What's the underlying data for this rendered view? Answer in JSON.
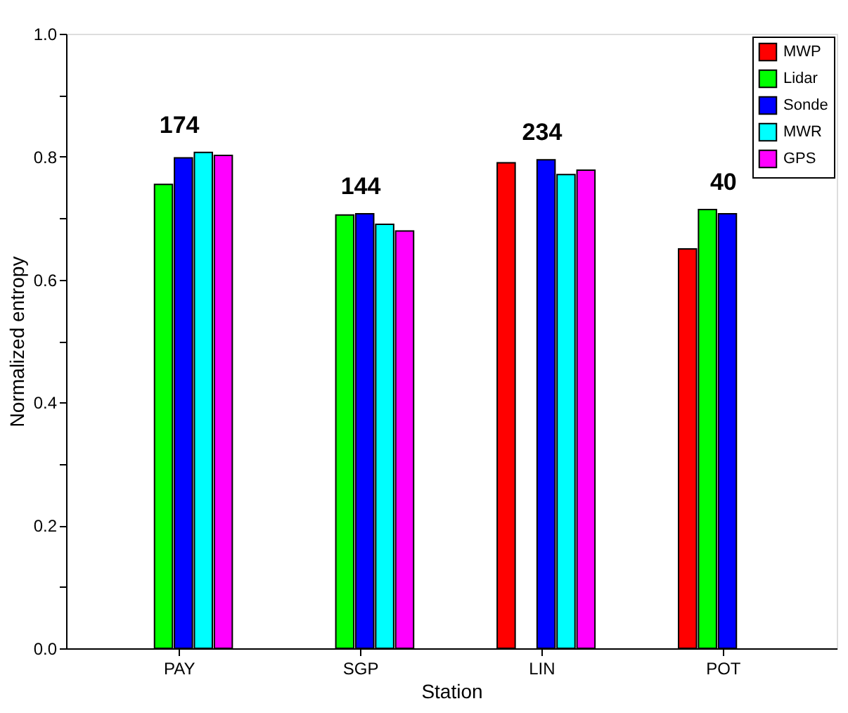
{
  "chart_data": {
    "type": "bar",
    "xlabel": "Station",
    "ylabel": "Normalized entropy",
    "categories": [
      "PAY",
      "SGP",
      "LIN",
      "POT"
    ],
    "series": [
      {
        "name": "MWP",
        "color": "#ff0000",
        "values": [
          null,
          null,
          0.79,
          0.65
        ]
      },
      {
        "name": "Lidar",
        "color": "#00ff00",
        "values": [
          0.755,
          0.705,
          null,
          0.714
        ]
      },
      {
        "name": "Sonde",
        "color": "#0000ff",
        "values": [
          0.798,
          0.707,
          0.795,
          0.707
        ]
      },
      {
        "name": "MWR",
        "color": "#00ffff",
        "values": [
          0.807,
          0.69,
          0.771,
          null
        ]
      },
      {
        "name": "GPS",
        "color": "#ff00ff",
        "values": [
          0.802,
          0.679,
          0.778,
          null
        ]
      }
    ],
    "ylim": [
      0,
      1.0
    ],
    "yticks": [
      {
        "value": 0,
        "label": "0.0"
      },
      {
        "value": 0.1,
        "label": null
      },
      0.2,
      {
        "value": 0.3,
        "label": null
      },
      0.4,
      {
        "value": 0.5,
        "label": null
      },
      0.6,
      {
        "value": 0.7,
        "label": null
      },
      0.8,
      {
        "value": 0.9,
        "label": null
      },
      {
        "value": 1,
        "label": "1.0"
      }
    ],
    "annotations": [
      "174",
      "144",
      "234",
      "40"
    ],
    "legend": "top right",
    "grid": false
  }
}
